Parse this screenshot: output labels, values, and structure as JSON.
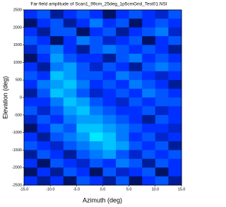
{
  "chart_data": {
    "type": "heatmap",
    "title": "Far-field amplitude of Scan1_99cm_25deg_1p5cmGrid_Test01.NSI",
    "x_label": "Azimuth (deg)",
    "y_label": "Elevation (deg)",
    "xlim": [
      -15,
      15
    ],
    "ylim": [
      -2500,
      2500
    ],
    "xticks": [
      {
        "value": -15,
        "label": "-15.0"
      },
      {
        "value": -10,
        "label": "-10.0"
      },
      {
        "value": -5,
        "label": "-5.0"
      },
      {
        "value": 0,
        "label": "0.0"
      },
      {
        "value": 5,
        "label": "5.0"
      },
      {
        "value": 10,
        "label": "10.0"
      },
      {
        "value": 15,
        "label": "15.0"
      }
    ],
    "yticks": [
      -2500,
      -2000,
      -1500,
      -1000,
      -500,
      0,
      500,
      1000,
      1500,
      2000,
      2500
    ],
    "colorscale": [
      "#000000",
      "#0030ff",
      "#00e8ff"
    ],
    "zlim": [
      0,
      1
    ],
    "z": [
      [
        0.5,
        0.6,
        0.3,
        0.5,
        0.6,
        0.5,
        0.2,
        0.5,
        0.6,
        0.5,
        0.4,
        0.6
      ],
      [
        0.2,
        0.5,
        0.6,
        0.3,
        0.5,
        0.7,
        0.5,
        0.6,
        0.2,
        0.5,
        0.6,
        0.5
      ],
      [
        0.5,
        0.3,
        0.6,
        0.6,
        0.2,
        0.5,
        0.6,
        0.3,
        0.5,
        0.6,
        0.7,
        0.4
      ],
      [
        0.6,
        0.5,
        0.2,
        0.5,
        0.7,
        0.6,
        0.4,
        0.5,
        0.6,
        0.2,
        0.5,
        0.6
      ],
      [
        0.4,
        0.6,
        0.7,
        0.5,
        0.3,
        0.6,
        0.7,
        0.6,
        0.5,
        0.6,
        0.5,
        0.3
      ],
      [
        0.2,
        0.5,
        0.8,
        0.6,
        0.5,
        0.5,
        0.3,
        0.6,
        0.7,
        0.5,
        0.6,
        0.5
      ],
      [
        0.5,
        0.3,
        0.7,
        0.8,
        0.6,
        0.4,
        0.6,
        0.5,
        0.3,
        0.6,
        0.7,
        0.6
      ],
      [
        0.6,
        0.5,
        0.9,
        0.8,
        0.6,
        0.6,
        0.5,
        0.7,
        0.6,
        0.5,
        0.4,
        0.5
      ],
      [
        0.5,
        0.7,
        0.8,
        0.9,
        0.7,
        0.5,
        0.6,
        0.5,
        0.7,
        0.6,
        0.5,
        0.3
      ],
      [
        0.3,
        0.6,
        0.9,
        0.8,
        0.6,
        0.4,
        0.5,
        0.6,
        0.5,
        0.7,
        0.6,
        0.5
      ],
      [
        0.5,
        0.5,
        0.7,
        0.9,
        0.8,
        0.6,
        0.5,
        0.4,
        0.6,
        0.5,
        0.6,
        0.6
      ],
      [
        0.6,
        0.4,
        0.6,
        0.8,
        0.9,
        0.7,
        0.6,
        0.5,
        0.5,
        0.6,
        0.4,
        0.5
      ],
      [
        0.4,
        0.6,
        0.5,
        0.7,
        0.8,
        0.8,
        0.7,
        0.6,
        0.5,
        0.3,
        0.6,
        0.5
      ],
      [
        0.2,
        0.5,
        0.7,
        0.6,
        0.9,
        0.9,
        0.8,
        0.7,
        0.6,
        0.5,
        0.5,
        0.4
      ],
      [
        0.5,
        0.3,
        0.6,
        0.7,
        0.8,
        1,
        0.9,
        0.7,
        0.5,
        0.6,
        0.4,
        0.5
      ],
      [
        0.6,
        0.5,
        0.4,
        0.6,
        0.7,
        0.8,
        0.9,
        0.8,
        0.6,
        0.5,
        0.6,
        0.3
      ],
      [
        0.3,
        0.6,
        0.5,
        0.3,
        0.6,
        0.7,
        0.8,
        0.6,
        0.4,
        0.6,
        0.5,
        0.6
      ],
      [
        0.5,
        0.2,
        0.6,
        0.5,
        0.4,
        0.6,
        0.5,
        0.7,
        0.6,
        0.3,
        0.6,
        0.5
      ],
      [
        0.2,
        0.5,
        0.3,
        0.6,
        0.5,
        0.2,
        0.6,
        0.4,
        0.5,
        0.6,
        0.2,
        0.5
      ],
      [
        0.5,
        0.3,
        0.5,
        0.2,
        0.6,
        0.5,
        0.3,
        0.6,
        0.2,
        0.5,
        0.6,
        0.3
      ]
    ]
  }
}
